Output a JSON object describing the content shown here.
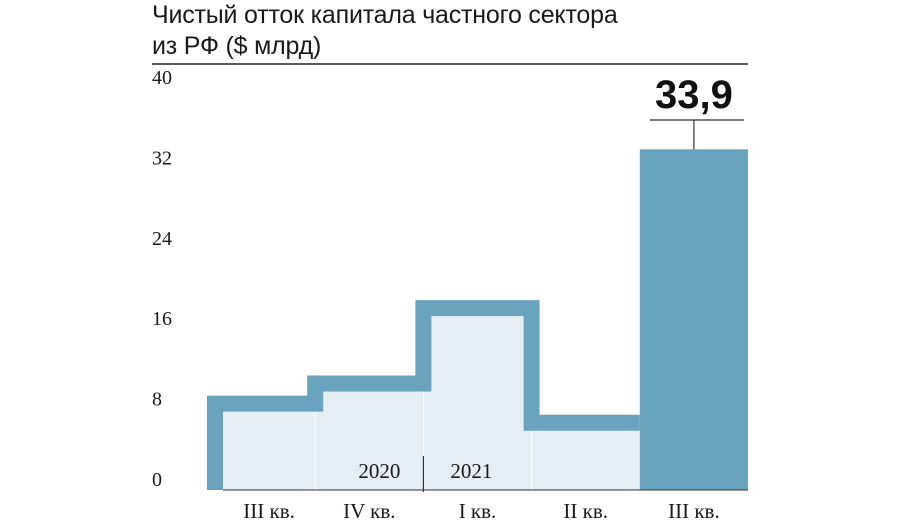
{
  "chart_data": {
    "type": "bar",
    "title": "Чистый отток капитала частного сектора\nиз РФ ($ млрд)",
    "categories": [
      "III кв.",
      "IV кв.",
      "I кв.",
      "II кв.",
      "III кв."
    ],
    "years": [
      "2020",
      "2021"
    ],
    "values": [
      7.8,
      9.8,
      17.3,
      5.9,
      33.9
    ],
    "highlight_label": "33,9",
    "yticks": [
      0,
      8,
      16,
      24,
      32,
      40
    ],
    "ylim": [
      0,
      40
    ],
    "xlabel": "",
    "ylabel": "",
    "grid": false,
    "colors": {
      "bar_outline": "#6aa3bd",
      "bar_fill": "#e4eef4",
      "highlight_bar": "#6aa3bd",
      "text": "#1a1a1a",
      "baseline": "#333333"
    }
  }
}
